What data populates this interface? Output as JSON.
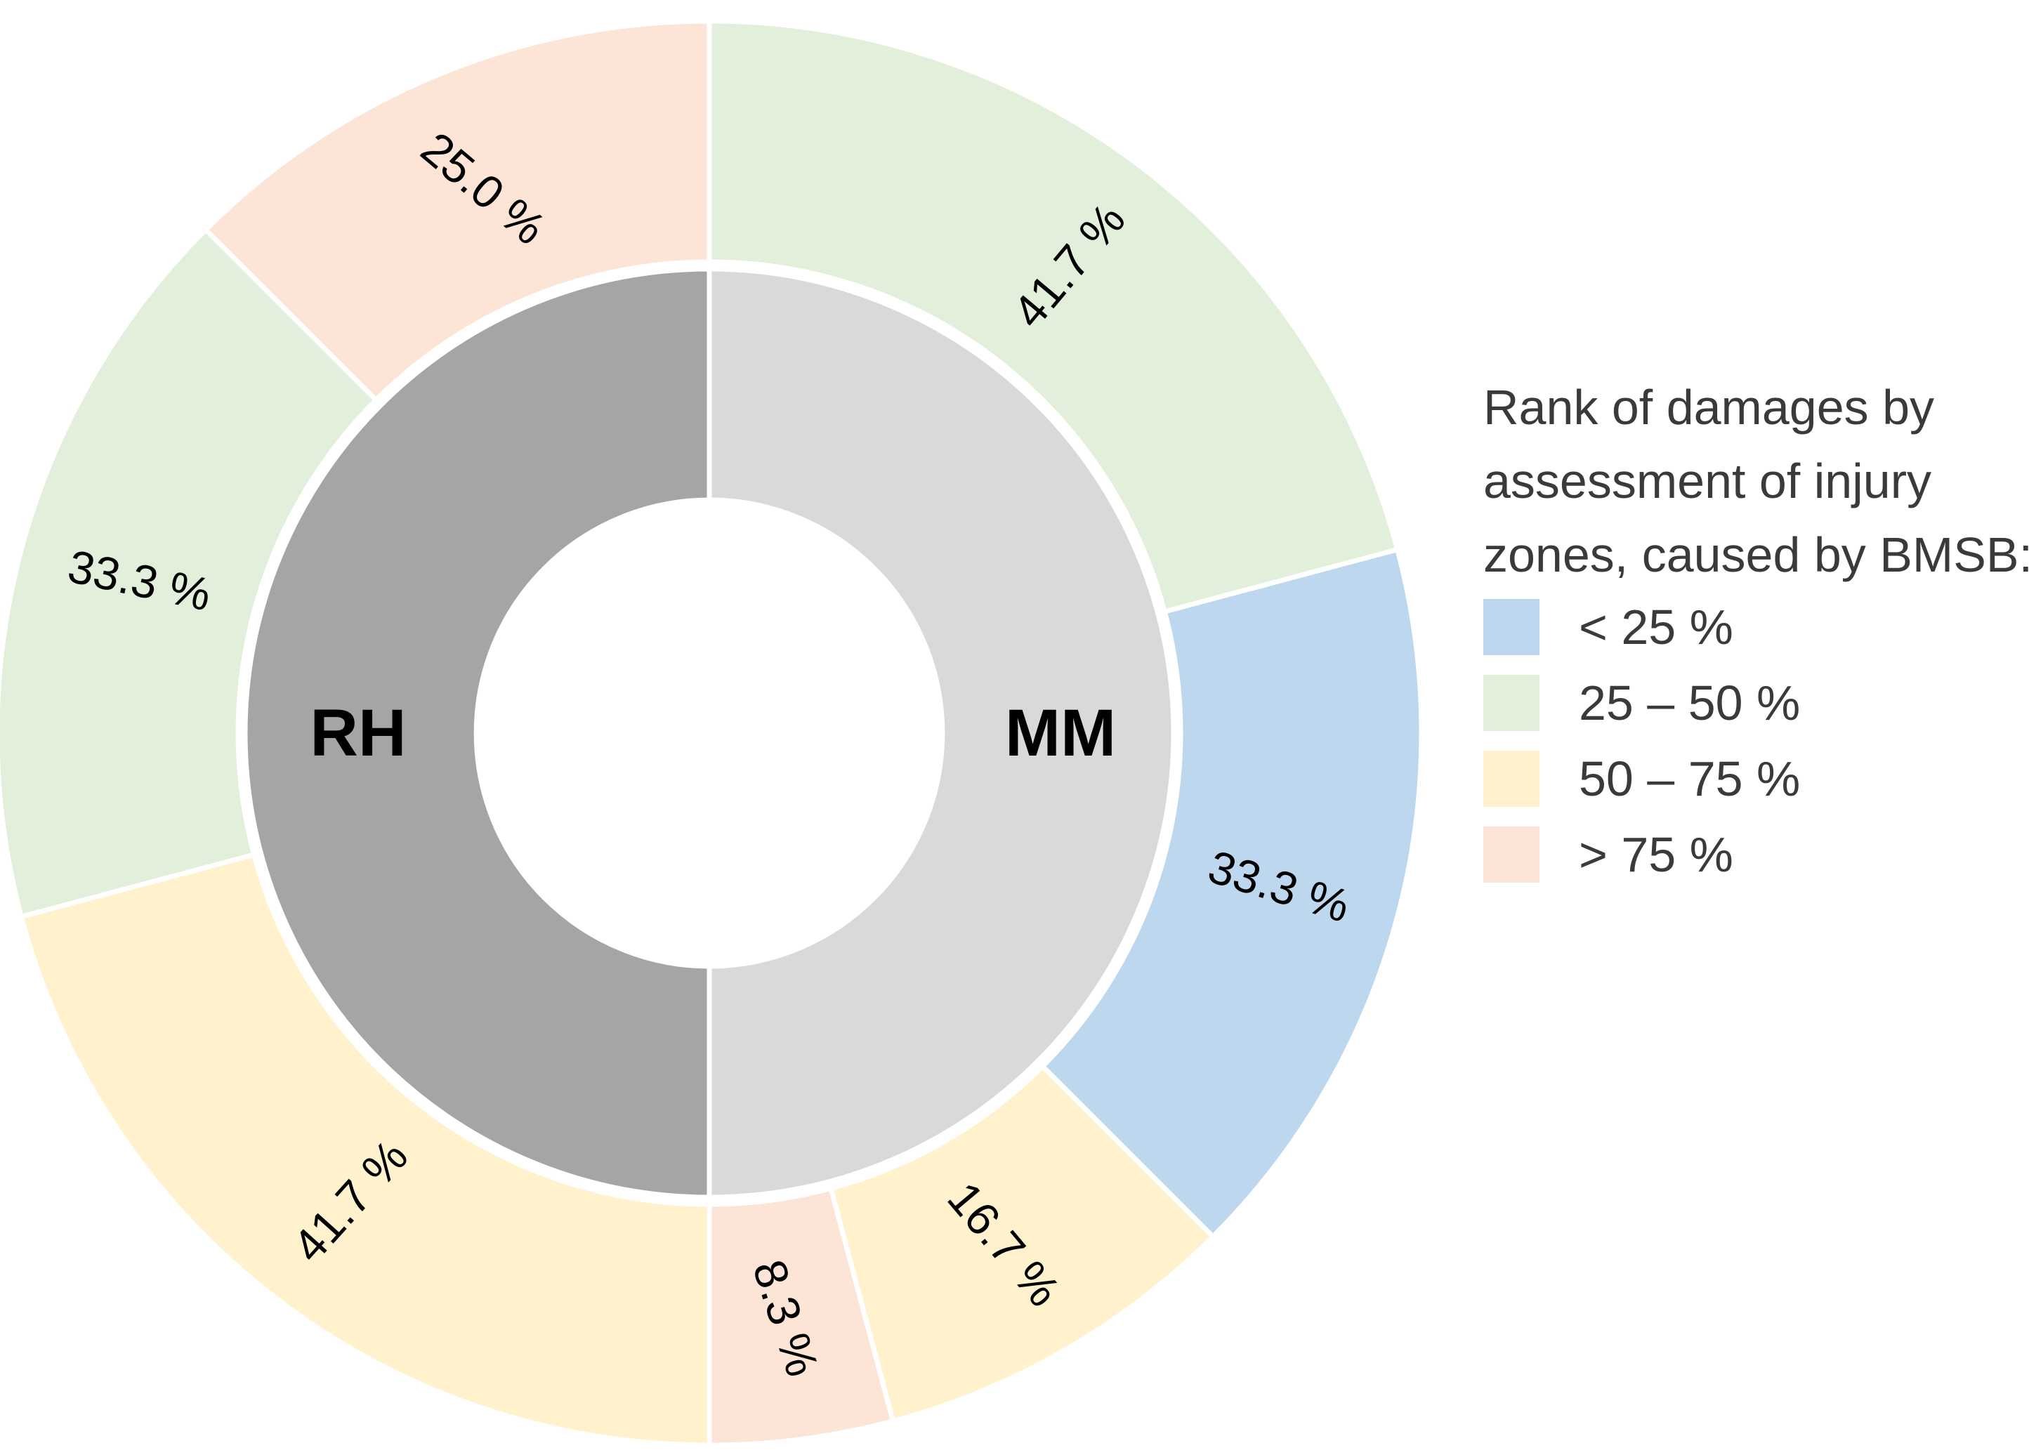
{
  "figure": {
    "background": "#FFFFFF",
    "label_text_color": "#000000",
    "legend_text_color": "#3a3a3a"
  },
  "legend": {
    "title_lines": [
      "Rank of damages by",
      "assessment of injury",
      "zones, caused by BMSB:"
    ],
    "items": [
      {
        "label": "< 25 %",
        "color": "#BDD7EE"
      },
      {
        "label": "25 – 50 %",
        "color": "#E2EFDA"
      },
      {
        "label": "50 – 75 %",
        "color": "#FFF2CC"
      },
      {
        "label": "> 75 %",
        "color": "#FCE4D6"
      }
    ]
  },
  "chart_data": {
    "type": "pie",
    "subtype": "two-ring donut (sunburst); each half of the outer ring sums to 100 % of its inner-ring group",
    "units": "%",
    "legend_position": "right",
    "inner_ring": [
      {
        "label": "MM",
        "share_pct": 50,
        "color": "#D9D9D9"
      },
      {
        "label": "RH",
        "share_pct": 50,
        "color": "#A5A5A5"
      }
    ],
    "outer_ring": [
      {
        "parent": "MM",
        "category": "25 – 50 %",
        "value_pct": 41.7,
        "label": "41.7 %",
        "color": "#E2EFDA"
      },
      {
        "parent": "MM",
        "category": "< 25 %",
        "value_pct": 33.3,
        "label": "33.3 %",
        "color": "#BDD7EE"
      },
      {
        "parent": "MM",
        "category": "50 – 75 %",
        "value_pct": 16.7,
        "label": "16.7 %",
        "color": "#FFF2CC"
      },
      {
        "parent": "MM",
        "category": "> 75 %",
        "value_pct": 8.3,
        "label": "8.3 %",
        "color": "#FCE4D6"
      },
      {
        "parent": "RH",
        "category": "50 – 75 %",
        "value_pct": 41.7,
        "label": "41.7 %",
        "color": "#FFF2CC"
      },
      {
        "parent": "RH",
        "category": "25 – 50 %",
        "value_pct": 33.3,
        "label": "33.3 %",
        "color": "#E2EFDA"
      },
      {
        "parent": "RH",
        "category": "> 75 %",
        "value_pct": 25.0,
        "label": "25.0 %",
        "color": "#FCE4D6"
      }
    ]
  }
}
